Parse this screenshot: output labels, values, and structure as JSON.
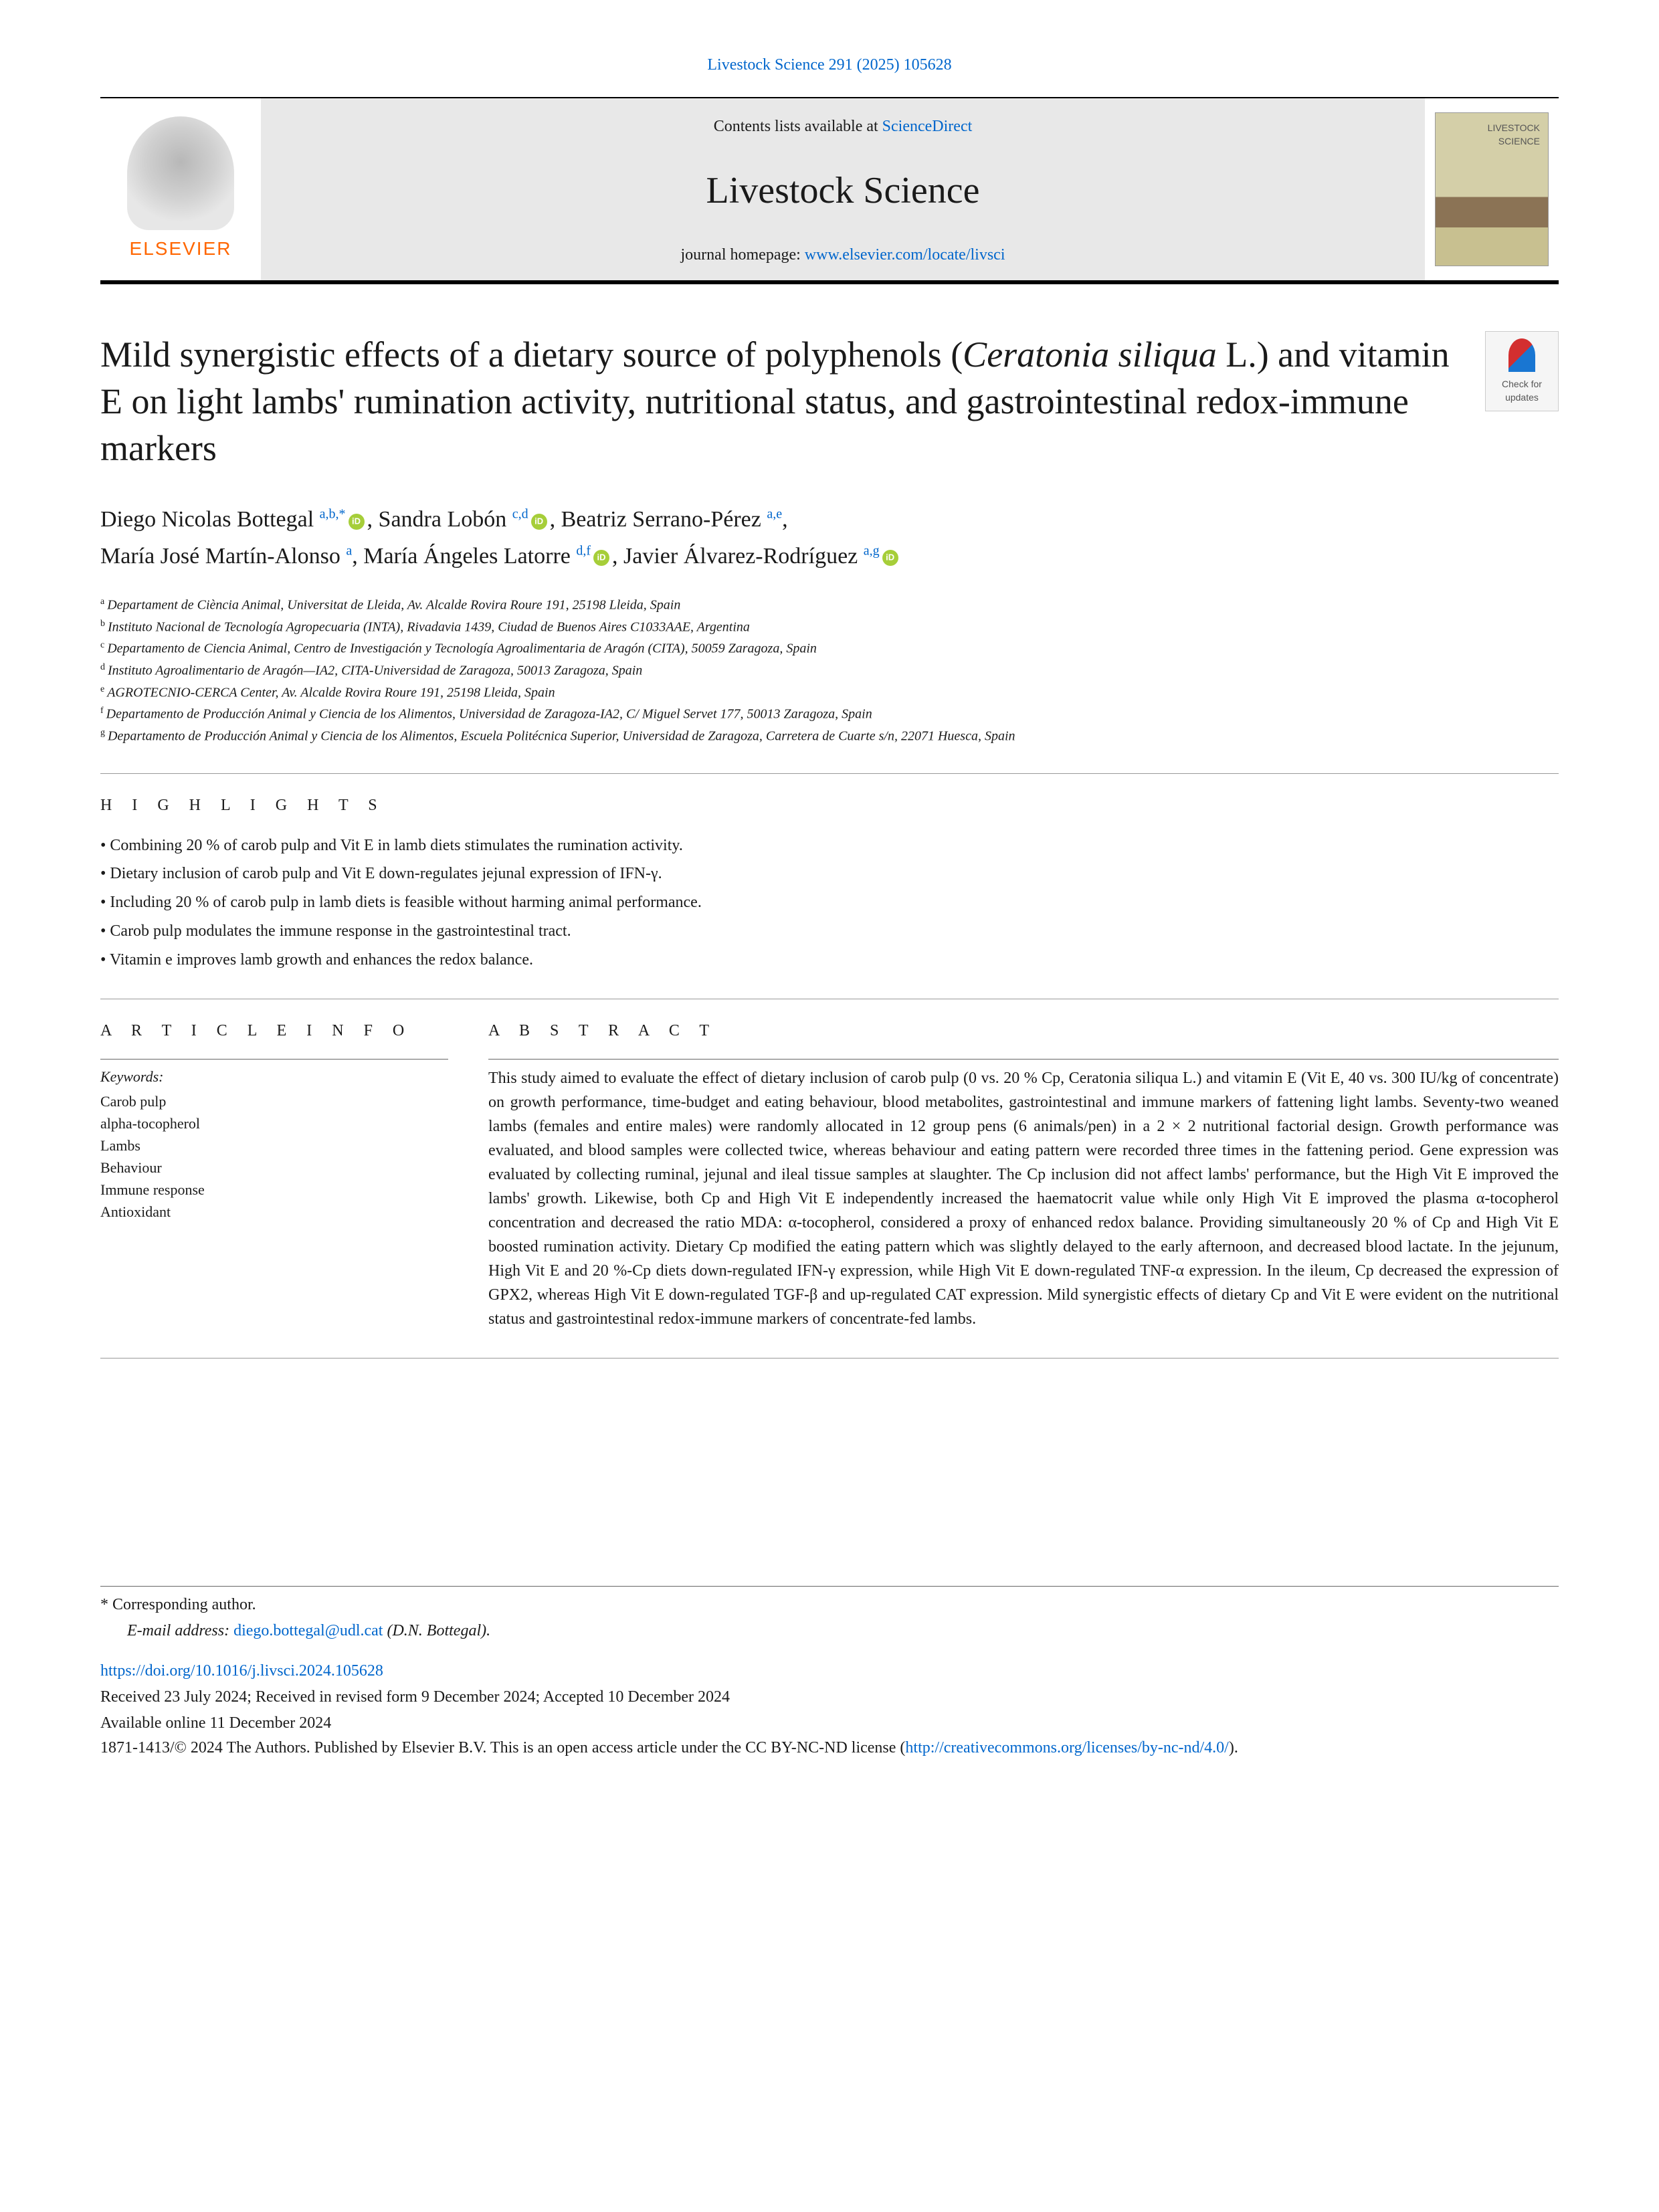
{
  "journal_ref": {
    "text": "Livestock Science 291 (2025) 105628"
  },
  "header": {
    "contents_prefix": "Contents lists available at ",
    "contents_link": "ScienceDirect",
    "journal_name": "Livestock Science",
    "homepage_prefix": "journal homepage: ",
    "homepage_link": "www.elsevier.com/locate/livsci",
    "elsevier": "ELSEVIER"
  },
  "check_updates": "Check for updates",
  "title": {
    "part1": "Mild synergistic effects of a dietary source of polyphenols (",
    "italic": "Ceratonia siliqua",
    "part2": " L.) and vitamin E on light lambs' rumination activity, nutritional status, and gastrointestinal redox-immune markers"
  },
  "authors": [
    {
      "name": "Diego Nicolas Bottegal",
      "sup": "a,b,*",
      "orcid": true
    },
    {
      "name": "Sandra Lobón",
      "sup": "c,d",
      "orcid": true
    },
    {
      "name": "Beatriz Serrano-Pérez",
      "sup": "a,e",
      "orcid": false
    },
    {
      "name": "María José Martín-Alonso",
      "sup": "a",
      "orcid": false
    },
    {
      "name": "María Ángeles Latorre",
      "sup": "d,f",
      "orcid": true
    },
    {
      "name": "Javier Álvarez-Rodríguez",
      "sup": "a,g",
      "orcid": true
    }
  ],
  "affiliations": [
    {
      "sup": "a",
      "text": "Departament de Ciència Animal, Universitat de Lleida, Av. Alcalde Rovira Roure 191, 25198 Lleida, Spain"
    },
    {
      "sup": "b",
      "text": "Instituto Nacional de Tecnología Agropecuaria (INTA), Rivadavia 1439, Ciudad de Buenos Aires C1033AAE, Argentina"
    },
    {
      "sup": "c",
      "text": "Departamento de Ciencia Animal, Centro de Investigación y Tecnología Agroalimentaria de Aragón (CITA), 50059 Zaragoza, Spain"
    },
    {
      "sup": "d",
      "text": "Instituto Agroalimentario de Aragón—IA2, CITA-Universidad de Zaragoza, 50013 Zaragoza, Spain"
    },
    {
      "sup": "e",
      "text": "AGROTECNIO-CERCA Center, Av. Alcalde Rovira Roure 191, 25198 Lleida, Spain"
    },
    {
      "sup": "f",
      "text": "Departamento de Producción Animal y Ciencia de los Alimentos, Universidad de Zaragoza-IA2, C/ Miguel Servet 177, 50013 Zaragoza, Spain"
    },
    {
      "sup": "g",
      "text": "Departamento de Producción Animal y Ciencia de los Alimentos, Escuela Politécnica Superior, Universidad de Zaragoza, Carretera de Cuarte s/n, 22071 Huesca, Spain"
    }
  ],
  "highlights_heading": "H I G H L I G H T S",
  "highlights": [
    "Combining 20 % of carob pulp and Vit E in lamb diets stimulates the rumination activity.",
    "Dietary inclusion of carob pulp and Vit E down-regulates jejunal expression of IFN-γ.",
    "Including 20 % of carob pulp in lamb diets is feasible without harming animal performance.",
    "Carob pulp modulates the immune response in the gastrointestinal tract.",
    "Vitamin e improves lamb growth and enhances the redox balance."
  ],
  "article_info_heading": "A R T I C L E  I N F O",
  "abstract_heading": "A B S T R A C T",
  "keywords_label": "Keywords:",
  "keywords": [
    "Carob pulp",
    "alpha-tocopherol",
    "Lambs",
    "Behaviour",
    "Immune response",
    "Antioxidant"
  ],
  "abstract": "This study aimed to evaluate the effect of dietary inclusion of carob pulp (0 vs. 20 % Cp, Ceratonia siliqua L.) and vitamin E (Vit E, 40 vs. 300 IU/kg of concentrate) on growth performance, time-budget and eating behaviour, blood metabolites, gastrointestinal and immune markers of fattening light lambs. Seventy-two weaned lambs (females and entire males) were randomly allocated in 12 group pens (6 animals/pen) in a 2 × 2 nutritional factorial design. Growth performance was evaluated, and blood samples were collected twice, whereas behaviour and eating pattern were recorded three times in the fattening period. Gene expression was evaluated by collecting ruminal, jejunal and ileal tissue samples at slaughter. The Cp inclusion did not affect lambs' performance, but the High Vit E improved the lambs' growth. Likewise, both Cp and High Vit E independently increased the haematocrit value while only High Vit E improved the plasma α-tocopherol concentration and decreased the ratio MDA: α-tocopherol, considered a proxy of enhanced redox balance. Providing simultaneously 20 % of Cp and High Vit E boosted rumination activity. Dietary Cp modified the eating pattern which was slightly delayed to the early afternoon, and decreased blood lactate. In the jejunum, High Vit E and 20 %-Cp diets down-regulated IFN-γ expression, while High Vit E down-regulated TNF-α expression. In the ileum, Cp decreased the expression of GPX2, whereas High Vit E down-regulated TGF-β and up-regulated CAT expression. Mild synergistic effects of dietary Cp and Vit E were evident on the nutritional status and gastrointestinal redox-immune markers of concentrate-fed lambs.",
  "footer": {
    "corr_label": "* Corresponding author.",
    "email_label": "E-mail address: ",
    "email": "diego.bottegal@udl.cat",
    "email_suffix": " (D.N. Bottegal).",
    "doi": "https://doi.org/10.1016/j.livsci.2024.105628",
    "dates": "Received 23 July 2024; Received in revised form 9 December 2024; Accepted 10 December 2024",
    "available": "Available online 11 December 2024",
    "copyright_prefix": "1871-1413/© 2024 The Authors. Published by Elsevier B.V. This is an open access article under the CC BY-NC-ND license (",
    "cc_link": "http://creativecommons.org/licenses/by-nc-nd/4.0/",
    "copyright_suffix": ")."
  }
}
